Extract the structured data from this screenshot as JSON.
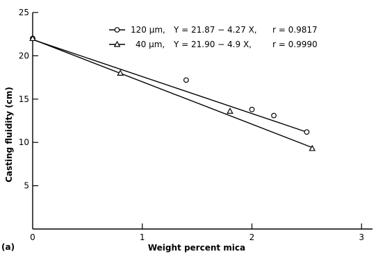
{
  "chart_data": {
    "type": "scatter",
    "xlabel": "Weight percent mica",
    "ylabel": "Casting fluidity (cm)",
    "panel_label": "(a)",
    "xlim": [
      0,
      3.1
    ],
    "ylim": [
      0,
      25
    ],
    "xticks": [
      "0",
      "1",
      "2",
      "3"
    ],
    "yticks": [
      "5",
      "10",
      "15",
      "20",
      "25"
    ],
    "legend_position": "top-center",
    "series": [
      {
        "name": "120 μm,",
        "equation": "Y = 21.87 − 4.27 X,",
        "r": "r = 0.9817",
        "marker": "circle",
        "points": [
          [
            0,
            22.0
          ],
          [
            1.4,
            17.2
          ],
          [
            2.0,
            13.8
          ],
          [
            2.2,
            13.1
          ],
          [
            2.5,
            11.2
          ]
        ],
        "fit": {
          "intercept": 21.87,
          "slope": -4.27,
          "x_range": [
            0,
            2.52
          ]
        }
      },
      {
        "name": "40 μm,",
        "equation": "Y = 21.90 − 4.9 X,",
        "r": "r = 0.9990",
        "marker": "triangle",
        "points": [
          [
            0,
            22.0
          ],
          [
            0.8,
            18.0
          ],
          [
            1.8,
            13.6
          ],
          [
            2.55,
            9.3
          ]
        ],
        "fit": {
          "intercept": 21.9,
          "slope": -4.9,
          "x_range": [
            0,
            2.55
          ]
        }
      }
    ]
  }
}
